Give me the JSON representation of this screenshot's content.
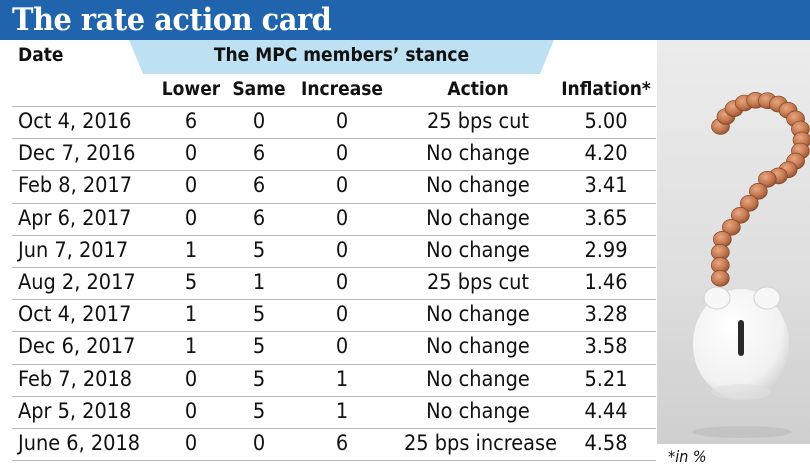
{
  "title": "The rate action card",
  "header": {
    "date": "Date",
    "stance": "The MPC members’ stance",
    "lower": "Lower",
    "same": "Same",
    "increase": "Increase",
    "action": "Action",
    "inflation": "Inflation*"
  },
  "rows": [
    {
      "date": "Oct 4, 2016",
      "lower": "6",
      "same": "0",
      "increase": "0",
      "action": "25 bps cut",
      "inflation": "5.00"
    },
    {
      "date": "Dec 7, 2016",
      "lower": "0",
      "same": "6",
      "increase": "0",
      "action": "No change",
      "inflation": "4.20"
    },
    {
      "date": "Feb 8, 2017",
      "lower": "0",
      "same": "6",
      "increase": "0",
      "action": "No change",
      "inflation": "3.41"
    },
    {
      "date": "Apr 6, 2017",
      "lower": "0",
      "same": "6",
      "increase": "0",
      "action": "No change",
      "inflation": "3.65"
    },
    {
      "date": "Jun 7, 2017",
      "lower": "1",
      "same": "5",
      "increase": "0",
      "action": "No change",
      "inflation": "2.99"
    },
    {
      "date": "Aug 2, 2017",
      "lower": "5",
      "same": "1",
      "increase": "0",
      "action": "25 bps cut",
      "inflation": "1.46"
    },
    {
      "date": "Oct 4, 2017",
      "lower": "1",
      "same": "5",
      "increase": "0",
      "action": "No change",
      "inflation": "3.28"
    },
    {
      "date": "Dec 6, 2017",
      "lower": "1",
      "same": "5",
      "increase": "0",
      "action": "No change",
      "inflation": "3.58"
    },
    {
      "date": "Feb 7, 2018",
      "lower": "0",
      "same": "5",
      "increase": "1",
      "action": "No change",
      "inflation": "5.21"
    },
    {
      "date": "Apr 5, 2018",
      "lower": "0",
      "same": "5",
      "increase": "1",
      "action": "No change",
      "inflation": "4.44"
    },
    {
      "date": "June 6, 2018",
      "lower": "0",
      "same": "0",
      "increase": "6",
      "action": "25 bps increase",
      "inflation": "4.58"
    }
  ],
  "footnote": "*in %",
  "colors": {
    "title_bar": "#1f64ad",
    "stance_banner": "#bde1f2",
    "row_divider": "#b9b9b9"
  },
  "image": {
    "subject": "coins arranged as question mark with piggy bank",
    "icon": "question-mark-coins-piggy-bank"
  }
}
